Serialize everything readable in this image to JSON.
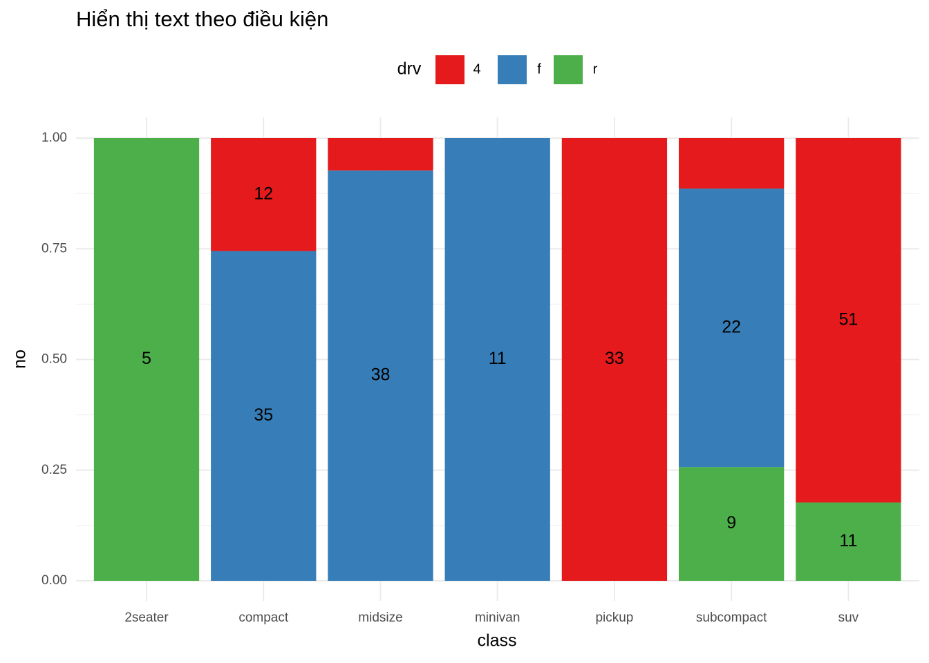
{
  "chart_data": {
    "type": "bar",
    "stacked": true,
    "title": "Hiển thị text theo điều kiện",
    "x_label": "class",
    "y_label": "no",
    "legend_title": "drv",
    "categories": [
      "2seater",
      "compact",
      "midsize",
      "minivan",
      "pickup",
      "subcompact",
      "suv"
    ],
    "series": [
      {
        "name": "4",
        "color": "#E41A1C",
        "values": [
          0,
          0.255,
          0.073,
          0,
          1,
          0.114,
          0.823
        ],
        "counts": [
          null,
          12,
          null,
          null,
          33,
          null,
          51
        ]
      },
      {
        "name": "f",
        "color": "#377EB8",
        "values": [
          0,
          0.745,
          0.927,
          1,
          0,
          0.629,
          0
        ],
        "counts": [
          null,
          35,
          38,
          11,
          null,
          22,
          null
        ]
      },
      {
        "name": "r",
        "color": "#4DAF4A",
        "values": [
          1,
          0,
          0,
          0,
          0,
          0.257,
          0.177
        ],
        "counts": [
          5,
          null,
          null,
          null,
          null,
          9,
          11
        ]
      }
    ],
    "ylim": [
      0,
      1
    ],
    "yticks": [
      {
        "value": 0,
        "label": "0.00"
      },
      {
        "value": 0.25,
        "label": "0.25"
      },
      {
        "value": 0.5,
        "label": "0.50"
      },
      {
        "value": 0.75,
        "label": "0.75"
      },
      {
        "value": 1,
        "label": "1.00"
      }
    ],
    "grid": true
  }
}
